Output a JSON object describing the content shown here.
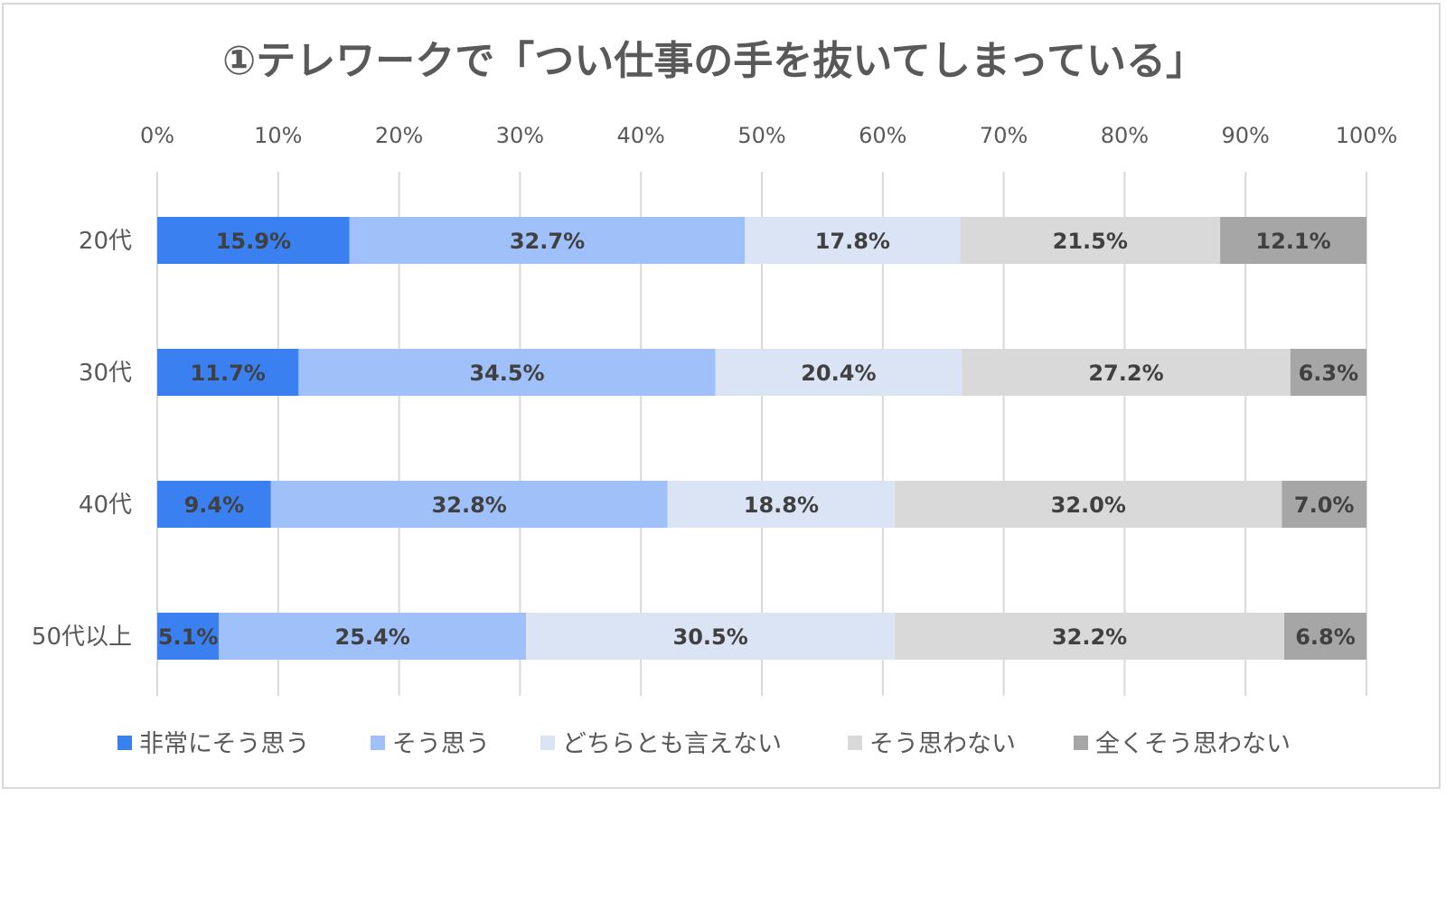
{
  "chart_data": {
    "type": "bar",
    "orientation": "horizontal",
    "stacked": "percent",
    "title": "①テレワークで「つい仕事の手を抜いてしまっている」",
    "xlabel": "",
    "ylabel": "",
    "xlim": [
      0,
      100
    ],
    "xticks": [
      "0%",
      "10%",
      "20%",
      "30%",
      "40%",
      "50%",
      "60%",
      "70%",
      "80%",
      "90%",
      "100%"
    ],
    "grid": true,
    "legend_position": "bottom",
    "categories": [
      "20代",
      "30代",
      "40代",
      "50代以上"
    ],
    "series": [
      {
        "name": "非常にそう思う",
        "color": "#3a80f0",
        "values": [
          15.9,
          11.7,
          9.4,
          5.1
        ],
        "labels": [
          "15.9%",
          "11.7%",
          "9.4%",
          "5.1%"
        ]
      },
      {
        "name": "そう思う",
        "color": "#9fc0f8",
        "values": [
          32.7,
          34.5,
          32.8,
          25.4
        ],
        "labels": [
          "32.7%",
          "34.5%",
          "32.8%",
          "25.4%"
        ]
      },
      {
        "name": "どちらとも言えない",
        "color": "#dae4f5",
        "values": [
          17.8,
          20.4,
          18.8,
          30.5
        ],
        "labels": [
          "17.8%",
          "20.4%",
          "18.8%",
          "30.5%"
        ]
      },
      {
        "name": "そう思わない",
        "color": "#d9d9d9",
        "values": [
          21.5,
          27.2,
          32.0,
          32.2
        ],
        "labels": [
          "21.5%",
          "27.2%",
          "32.0%",
          "32.2%"
        ]
      },
      {
        "name": "全くそう思わない",
        "color": "#a6a6a6",
        "values": [
          12.1,
          6.3,
          7.0,
          6.8
        ],
        "labels": [
          "12.1%",
          "6.3%",
          "7.0%",
          "6.8%"
        ]
      }
    ],
    "colors": {
      "grid": "#d9d9d9",
      "text": "#595959",
      "label": "#404040"
    }
  }
}
